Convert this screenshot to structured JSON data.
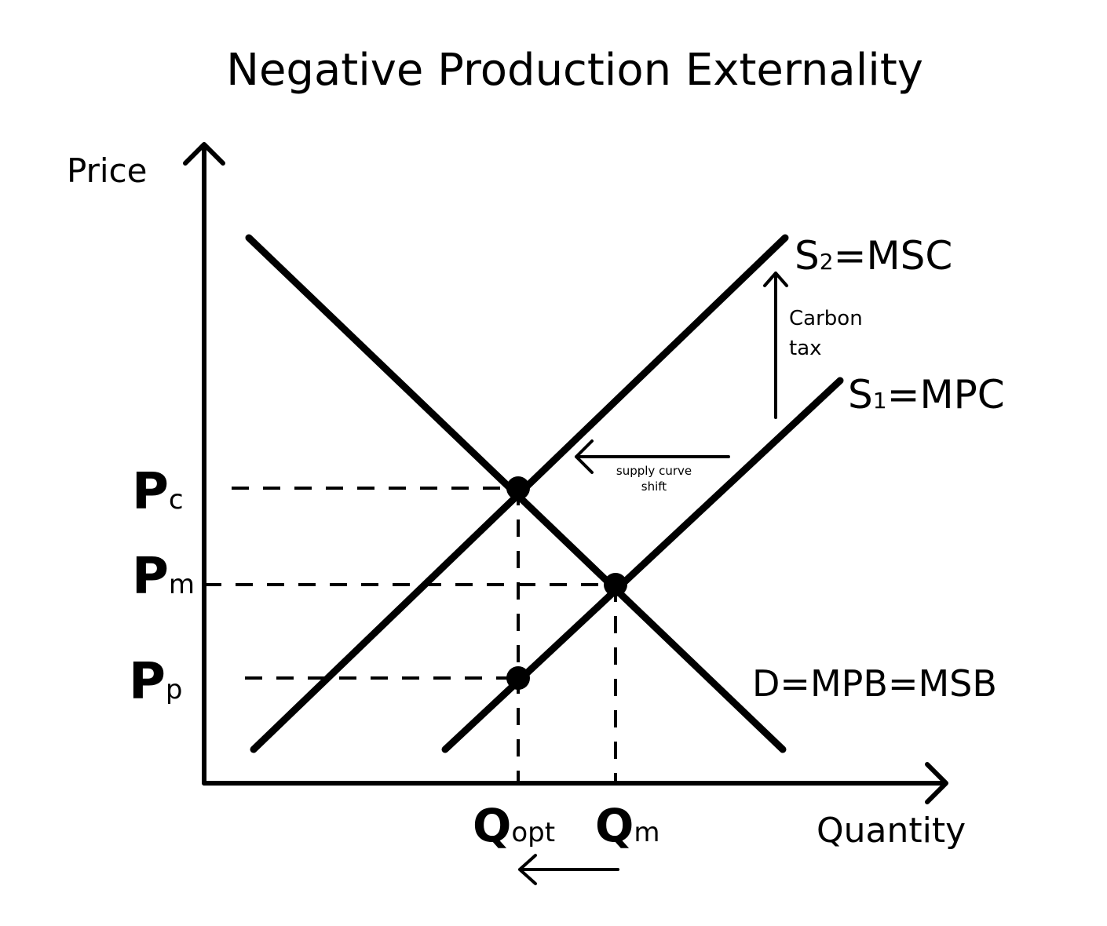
{
  "title": "Negative Production Externality",
  "axes": {
    "y_label": "Price",
    "x_label": "Quantity"
  },
  "curves": [
    {
      "main": "S",
      "sub": "2",
      "rest": "=MSC"
    },
    {
      "main": "S",
      "sub": "1",
      "rest": "=MPC"
    },
    {
      "main": "D=MPB=MSB"
    }
  ],
  "price_labels": [
    {
      "main": "P",
      "sub": "c"
    },
    {
      "main": "P",
      "sub": "m"
    },
    {
      "main": "P",
      "sub": "p"
    }
  ],
  "quantity_labels": [
    {
      "main": "Q",
      "sub": "opt"
    },
    {
      "main": "Q",
      "sub": "m"
    }
  ],
  "annotations": {
    "carbon_tax": [
      "Carbon",
      "tax"
    ],
    "supply_shift": [
      "supply curve",
      "shift"
    ]
  }
}
